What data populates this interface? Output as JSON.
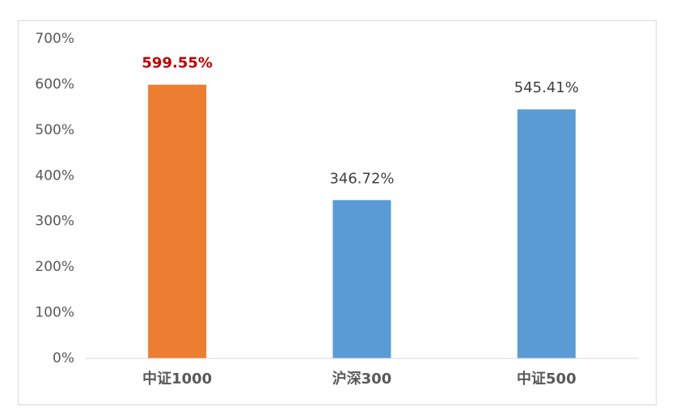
{
  "chart_data": {
    "type": "bar",
    "categories": [
      "中证1000",
      "沪深300",
      "中证500"
    ],
    "values": [
      599.55,
      346.72,
      545.41
    ],
    "value_labels": [
      "599.55%",
      "346.72%",
      "545.41%"
    ],
    "colors": [
      "#ed7d31",
      "#5b9bd5",
      "#5b9bd5"
    ],
    "value_label_colors": [
      "#c00000",
      "#404040",
      "#404040"
    ],
    "value_label_bold": [
      true,
      false,
      false
    ],
    "ylim": [
      0,
      700
    ],
    "yticks": [
      {
        "value": 0,
        "label": "0%"
      },
      {
        "value": 100,
        "label": "100%"
      },
      {
        "value": 200,
        "label": "200%"
      },
      {
        "value": 300,
        "label": "300%"
      },
      {
        "value": 400,
        "label": "400%"
      },
      {
        "value": 500,
        "label": "500%"
      },
      {
        "value": 600,
        "label": "600%"
      },
      {
        "value": 700,
        "label": "700%"
      }
    ],
    "grid": false
  }
}
